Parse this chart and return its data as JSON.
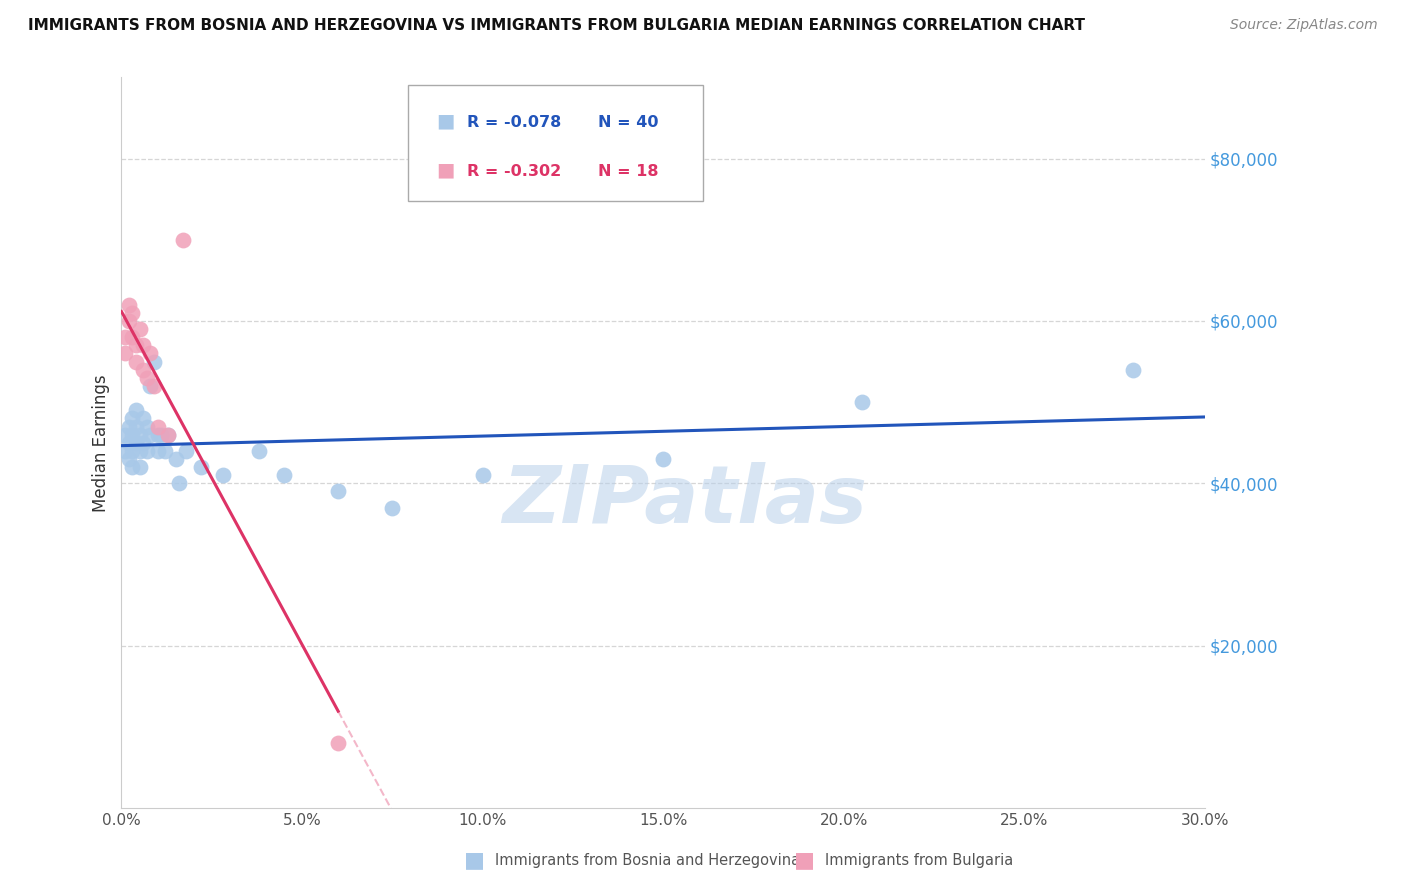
{
  "title": "IMMIGRANTS FROM BOSNIA AND HERZEGOVINA VS IMMIGRANTS FROM BULGARIA MEDIAN EARNINGS CORRELATION CHART",
  "source": "Source: ZipAtlas.com",
  "ylabel": "Median Earnings",
  "right_yticks": [
    20000,
    40000,
    60000,
    80000
  ],
  "right_ytick_labels": [
    "$20,000",
    "$40,000",
    "$60,000",
    "$80,000"
  ],
  "bosnia_label": "Immigrants from Bosnia and Herzegovina",
  "bulgaria_label": "Immigrants from Bulgaria",
  "bosnia_R": "-0.078",
  "bosnia_N": "40",
  "bulgaria_R": "-0.302",
  "bulgaria_N": "18",
  "bosnia_color": "#a8c8e8",
  "bulgaria_color": "#f0a0b8",
  "bosnia_line_color": "#2255bb",
  "bulgaria_line_color": "#dd3366",
  "watermark": "ZIPatlas",
  "xlim": [
    0.0,
    0.3
  ],
  "ylim": [
    0,
    90000
  ],
  "bosnia_x": [
    0.001,
    0.001,
    0.002,
    0.002,
    0.002,
    0.003,
    0.003,
    0.003,
    0.003,
    0.004,
    0.004,
    0.004,
    0.005,
    0.005,
    0.005,
    0.006,
    0.006,
    0.007,
    0.007,
    0.008,
    0.008,
    0.009,
    0.01,
    0.01,
    0.011,
    0.012,
    0.013,
    0.015,
    0.016,
    0.018,
    0.022,
    0.028,
    0.038,
    0.045,
    0.06,
    0.075,
    0.1,
    0.15,
    0.205,
    0.28
  ],
  "bosnia_y": [
    46000,
    44000,
    47000,
    45000,
    43000,
    48000,
    46000,
    44000,
    42000,
    49000,
    47000,
    45000,
    46000,
    44000,
    42000,
    48000,
    45000,
    47000,
    44000,
    52000,
    46000,
    55000,
    46000,
    44000,
    46000,
    44000,
    46000,
    43000,
    40000,
    44000,
    42000,
    41000,
    44000,
    41000,
    39000,
    37000,
    41000,
    43000,
    50000,
    54000
  ],
  "bulgaria_x": [
    0.001,
    0.001,
    0.002,
    0.002,
    0.003,
    0.003,
    0.004,
    0.004,
    0.005,
    0.006,
    0.006,
    0.007,
    0.008,
    0.009,
    0.01,
    0.013,
    0.017,
    0.06
  ],
  "bulgaria_y": [
    58000,
    56000,
    62000,
    60000,
    61000,
    58000,
    57000,
    55000,
    59000,
    57000,
    54000,
    53000,
    56000,
    52000,
    47000,
    46000,
    70000,
    8000
  ]
}
